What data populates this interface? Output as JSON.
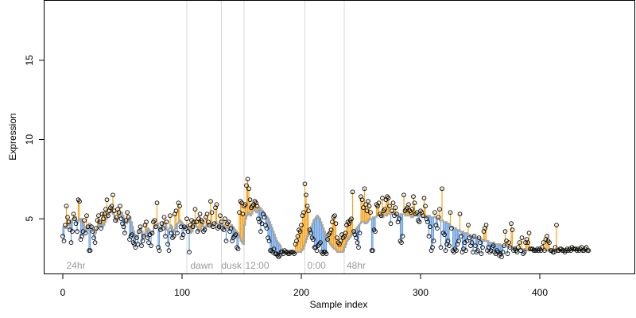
{
  "chart_data": {
    "type": "scatter",
    "title": "",
    "xlabel": "Sample index",
    "ylabel": "Expression",
    "xlim": [
      -16,
      480
    ],
    "ylim": [
      1.5,
      18.8
    ],
    "x_ticks": [
      0,
      100,
      200,
      300,
      400
    ],
    "y_ticks": [
      5,
      10,
      15
    ],
    "grid": false,
    "colors": {
      "above": "#f5a623",
      "below": "#6a9fe0",
      "fit": "#a8a8a8",
      "vline": "#d8d8d8",
      "annotation": "#9a9a9a"
    },
    "vlines": [
      104,
      133,
      152,
      203,
      236
    ],
    "annotations": [
      {
        "text": "24hr",
        "x": 3
      },
      {
        "text": "dawn",
        "x": 107
      },
      {
        "text": "dusk",
        "x": 133
      },
      {
        "text": "12:00",
        "x": 153
      },
      {
        "text": "0:00",
        "x": 205
      },
      {
        "text": "48hr",
        "x": 238
      }
    ],
    "series": [
      {
        "fit": [
          4.5,
          4.5,
          4.4,
          4.4,
          4.6,
          4.7,
          4.9,
          4.8,
          5.0,
          5.0,
          5.1,
          4.9,
          4.8,
          4.9,
          5.0,
          5.0,
          4.8,
          4.6,
          4.4,
          4.2,
          4.3,
          4.5,
          4.7,
          4.6,
          4.4,
          4.2,
          4.0,
          4.1,
          4.3,
          4.5,
          4.6,
          4.8,
          4.7,
          4.5,
          4.6,
          4.8,
          5.0,
          5.2,
          5.3,
          5.4,
          5.5,
          5.4,
          5.3,
          5.1,
          4.9,
          4.8,
          5.0,
          5.2,
          5.3,
          5.4,
          5.2,
          5.0,
          4.8,
          4.7,
          4.8,
          5.0,
          5.1,
          4.8,
          4.5,
          4.2,
          4.0,
          3.8,
          3.9,
          4.1,
          4.3,
          4.4,
          4.2,
          4.0,
          3.9,
          4.1,
          4.3,
          4.4,
          4.3,
          4.1,
          4.0,
          4.2,
          4.4,
          4.5,
          4.6,
          4.7,
          4.5,
          4.3,
          4.4,
          4.6,
          4.8,
          4.7,
          4.5,
          4.3,
          4.2,
          4.4,
          4.6,
          4.5,
          4.3,
          4.2,
          4.4,
          4.6,
          4.7,
          4.8,
          4.9,
          4.8,
          4.7,
          4.5,
          4.4,
          4.5,
          4.6,
          4.5,
          4.3,
          4.1,
          4.2,
          4.4,
          4.5,
          4.6,
          4.5,
          4.3,
          4.2,
          4.3,
          4.5,
          4.6,
          4.5,
          4.4,
          4.5,
          4.6,
          4.7,
          4.6,
          4.5,
          4.5,
          4.6,
          4.7,
          4.8,
          4.7,
          4.6,
          4.5,
          4.6,
          4.7,
          4.6,
          4.5,
          4.4,
          4.5,
          4.4,
          4.3,
          4.5,
          4.6,
          4.5,
          4.4,
          4.3,
          4.2,
          4.1,
          4.0,
          3.8,
          3.6,
          3.5,
          3.4,
          4.6,
          5.0,
          5.2,
          5.4,
          5.3,
          5.2,
          5.3,
          5.5,
          5.6,
          5.5,
          5.4,
          5.5,
          5.6,
          5.7,
          5.6,
          5.5,
          5.4,
          5.3,
          5.2,
          5.1,
          5.0,
          4.8,
          4.6,
          4.4,
          4.2,
          4.0,
          3.8,
          3.6,
          3.5,
          3.4,
          3.3,
          3.1,
          3.0,
          2.9,
          2.9,
          2.8,
          2.8,
          2.8,
          2.9,
          2.9,
          2.9,
          2.9,
          2.8,
          2.8,
          2.9,
          2.9,
          2.9,
          2.9,
          3.0,
          3.1,
          3.3,
          3.5,
          3.7,
          3.9,
          4.1,
          4.3,
          4.5,
          4.7,
          4.9,
          5.0,
          5.1,
          5.2,
          5.1,
          5.0,
          4.8,
          4.6,
          4.4,
          4.2,
          4.0,
          3.8,
          3.6,
          3.5,
          3.4,
          3.3,
          3.2,
          3.1,
          3.1,
          3.0,
          2.9,
          2.9,
          2.9,
          2.9,
          2.9,
          3.0,
          3.2,
          3.4,
          3.6,
          3.7,
          3.8,
          3.9,
          4.0,
          4.1,
          4.2,
          4.3,
          4.4,
          4.5,
          4.6,
          4.7,
          4.8,
          4.8,
          4.8,
          4.7,
          4.7,
          4.8,
          4.9,
          5.0,
          5.0,
          5.0,
          5.1,
          5.1,
          5.1,
          5.2,
          5.2,
          5.2,
          5.2,
          5.1,
          5.1,
          5.2,
          5.2,
          5.2,
          5.3,
          5.3,
          5.3,
          5.3,
          5.4,
          5.4,
          5.3,
          5.3,
          5.2,
          5.2,
          5.2,
          5.3,
          5.3,
          5.3,
          5.3,
          5.2,
          5.2,
          5.2,
          5.2,
          5.2,
          5.1,
          5.1,
          5.2,
          5.2,
          5.2,
          5.3,
          5.3,
          5.2,
          5.2,
          5.1,
          5.1,
          5.1,
          5.2,
          5.2,
          5.2,
          5.2,
          5.1,
          5.1,
          5.1,
          5.1,
          5.1,
          5.0,
          5.0,
          5.0,
          4.9,
          4.9,
          4.9,
          4.8,
          4.8,
          4.8,
          4.7,
          4.7,
          4.6,
          4.5,
          4.5,
          4.4,
          4.4,
          4.4,
          4.3,
          4.3,
          4.3,
          4.2,
          4.2,
          4.2,
          4.1,
          4.1,
          4.1,
          4.0,
          4.0,
          4.0,
          3.9,
          3.9,
          3.9,
          3.8,
          3.8,
          3.8,
          3.8,
          3.7,
          3.7,
          3.7,
          3.7,
          3.6,
          3.6,
          3.6,
          3.6,
          3.5,
          3.5,
          3.5,
          3.5,
          3.5,
          3.4,
          3.4,
          3.4,
          3.4,
          3.4,
          3.3,
          3.3,
          3.3,
          3.3,
          3.3,
          3.3,
          3.2,
          3.2,
          3.2,
          3.2,
          3.2,
          3.2,
          3.2,
          3.1,
          3.1,
          3.1,
          3.1,
          3.1,
          3.1,
          3.1,
          3.1,
          3.0,
          3.0,
          3.0,
          3.0,
          3.0,
          3.0,
          3.0,
          3.0,
          3.0,
          3.0,
          3.0,
          3.0,
          3.0,
          3.0,
          3.0,
          3.0,
          3.0,
          3.0,
          3.0,
          3.0,
          3.0,
          3.0,
          3.0,
          3.0,
          3.0,
          3.0,
          3.0,
          3.0,
          3.0,
          3.0,
          3.0,
          3.0,
          3.0,
          3.0,
          3.0,
          3.0,
          3.0,
          3.0,
          3.0,
          3.0,
          3.0,
          3.0,
          3.0,
          3.0,
          3.0,
          3.0,
          3.0,
          3.0,
          3.0,
          3.0,
          3.0,
          3.0,
          3.0,
          3.0,
          3.0,
          3.0,
          3.0
        ],
        "observed": [
          3.9,
          3.6,
          4.6,
          5.8,
          5.1,
          4.8,
          4.3,
          3.5,
          4.2,
          5.3,
          5.0,
          4.7,
          4.2,
          6.2,
          6.1,
          3.7,
          3.9,
          4.2,
          4.9,
          4.1,
          5.2,
          4.5,
          3.0,
          3.0,
          4.5,
          4.2,
          3.8,
          3.5,
          4.4,
          4.9,
          5.2,
          4.8,
          4.4,
          5.3,
          5.0,
          5.3,
          5.6,
          6.2,
          5.2,
          5.5,
          5.7,
          5.8,
          6.5,
          5.5,
          4.9,
          5.1,
          5.6,
          5.4,
          5.8,
          5.0,
          4.7,
          4.5,
          4.1,
          4.9,
          5.4,
          5.1,
          3.7,
          3.9,
          4.0,
          3.5,
          3.4,
          3.2,
          3.8,
          3.4,
          4.2,
          4.5,
          3.3,
          3.6,
          3.9,
          4.6,
          4.8,
          3.8,
          3.5,
          4.0,
          3.3,
          4.1,
          4.8,
          4.9,
          4.5,
          6.0,
          3.2,
          3.0,
          4.3,
          4.7,
          4.4,
          5.1,
          3.9,
          4.8,
          3.4,
          3.0,
          5.2,
          4.1,
          3.8,
          3.9,
          5.3,
          5.5,
          4.1,
          6.0,
          5.8,
          4.5,
          3.8,
          4.0,
          4.5,
          4.4,
          5.0,
          4.2,
          2.9,
          4.6,
          4.9,
          4.5,
          4.8,
          5.6,
          4.8,
          4.2,
          5.0,
          5.3,
          4.9,
          4.8,
          4.2,
          4.3,
          5.1,
          5.3,
          4.8,
          4.6,
          6.1,
          5.4,
          4.5,
          4.7,
          5.7,
          5.9,
          4.4,
          4.5,
          5.2,
          4.8,
          4.4,
          4.3,
          5.0,
          3.6,
          4.7,
          4.8,
          4.2,
          4.4,
          3.6,
          3.8,
          3.9,
          4.0,
          3.2,
          3.1,
          5.4,
          6.1,
          6.0,
          5.3,
          5.8,
          5.9,
          7.1,
          7.5,
          6.9,
          6.2,
          5.7,
          5.8,
          5.9,
          6.1,
          6.0,
          5.8,
          5.0,
          4.8,
          4.2,
          4.7,
          5.3,
          5.1,
          4.6,
          4.4,
          3.8,
          3.6,
          3.0,
          3.0,
          2.9,
          3.1,
          2.8,
          2.8,
          2.7,
          2.6,
          2.7,
          2.9,
          2.9,
          2.8,
          3.0,
          2.9,
          2.9,
          2.8,
          2.8,
          2.9,
          2.9,
          2.9,
          2.8,
          3.4,
          3.6,
          3.9,
          4.3,
          4.2,
          4.6,
          5.2,
          5.4,
          7.2,
          6.5,
          5.8,
          5.5,
          4.3,
          4.1,
          3.8,
          3.7,
          3.2,
          3.2,
          3.0,
          3.3,
          3.4,
          3.5,
          2.9,
          2.8,
          2.9,
          2.9,
          2.8,
          3.7,
          4.0,
          4.1,
          4.3,
          4.8,
          5.1,
          5.2,
          4.7,
          3.8,
          3.5,
          3.4,
          3.6,
          4.0,
          3.8,
          3.9,
          4.1,
          4.6,
          4.8,
          4.7,
          4.9,
          5.0,
          6.7,
          4.2,
          4.0,
          3.8,
          3.5,
          3.2,
          4.1,
          6.4,
          6.2,
          5.7,
          6.9,
          5.9,
          5.5,
          6.1,
          5.8,
          5.4,
          3.0,
          3.0,
          4.3,
          4.2,
          5.9,
          5.8,
          6.0,
          5.3,
          5.2,
          6.3,
          5.5,
          5.6,
          6.2,
          6.4,
          6.3,
          5.8,
          4.7,
          5.5,
          6.0,
          5.2,
          5.7,
          5.3,
          4.8,
          5.0,
          3.6,
          3.5,
          3.9,
          6.5,
          5.5,
          5.6,
          5.7,
          5.9,
          5.5,
          5.4,
          5.6,
          6.4,
          6.0,
          5.3,
          5.4,
          4.9,
          4.8,
          5.5,
          5.4,
          5.2,
          6.3,
          5.8,
          5.0,
          4.8,
          3.9,
          4.5,
          3.0,
          3.2,
          3.6,
          5.4,
          4.6,
          4.4,
          5.1,
          5.6,
          3.2,
          6.9,
          4.1,
          4.0,
          3.0,
          3.4,
          3.6,
          3.3,
          5.4,
          4.4,
          3.0,
          2.9,
          3.1,
          3.0,
          3.4,
          3.6,
          5.3,
          3.9,
          2.9,
          3.1,
          3.5,
          3.0,
          3.6,
          4.6,
          3.8,
          3.3,
          3.5,
          2.9,
          3.9,
          3.3,
          2.9,
          3.0,
          3.8,
          3.5,
          2.8,
          3.2,
          4.2,
          4.4,
          4.6,
          3.0,
          3.2,
          2.9,
          3.0,
          3.2,
          3.3,
          2.9,
          2.8,
          3.0,
          2.9,
          2.7,
          2.8,
          2.6,
          2.9,
          3.3,
          4.2,
          3.6,
          2.8,
          3.5,
          3.2,
          4.7,
          4.3,
          3.0,
          3.1,
          3.0,
          2.9,
          3.2,
          3.5,
          3.0,
          3.8,
          2.8,
          2.9,
          3.5,
          3.7,
          3.5,
          4.1,
          3.1,
          3.1,
          3.1,
          3.0,
          3.0,
          3.0,
          3.1,
          3.0,
          3.1,
          3.0,
          3.2,
          3.5,
          3.0,
          3.7,
          3.9,
          3.6,
          3.5,
          3.0,
          3.0,
          2.9,
          2.9,
          3.2,
          4.6,
          3.0,
          3.0,
          3.1,
          3.1,
          3.0,
          3.0,
          2.9,
          3.0,
          3.1,
          3.0,
          3.1,
          3.0,
          3.2,
          3.1,
          3.1,
          3.1,
          3.0,
          3.1,
          3.0,
          3.1,
          3.2,
          3.0,
          3.0,
          3.1,
          3.2,
          3.0,
          3.0
        ]
      }
    ]
  }
}
